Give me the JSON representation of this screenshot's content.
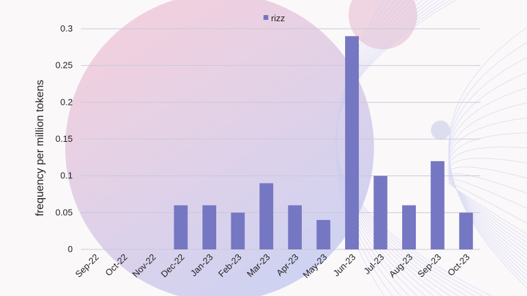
{
  "chart_data": {
    "type": "bar",
    "categories": [
      "Sep-22",
      "Oct-22",
      "Nov-22",
      "Dec-22",
      "Jan-23",
      "Feb-23",
      "Mar-23",
      "Apr-23",
      "May-23",
      "Jun-23",
      "Jul-23",
      "Aug-23",
      "Sep-23",
      "Oct-23"
    ],
    "series": [
      {
        "name": "rizz",
        "values": [
          0,
          0,
          0,
          0.06,
          0.06,
          0.05,
          0.09,
          0.06,
          0.04,
          0.29,
          0.1,
          0.06,
          0.12,
          0.05
        ]
      }
    ],
    "title": "",
    "xlabel": "",
    "ylabel": "frequency per million tokens",
    "ylim": [
      0,
      0.3
    ],
    "yticks": [
      "0",
      "0.05",
      "0.1",
      "0.15",
      "0.2",
      "0.25",
      "0.3"
    ],
    "ytick_values": [
      0,
      0.05,
      0.1,
      0.15,
      0.2,
      0.25,
      0.3
    ],
    "grid": true,
    "legend_position": "top-center",
    "colors": {
      "bar": "#7577c2",
      "grid": "#c9c9d6",
      "axis": "#888888"
    }
  }
}
